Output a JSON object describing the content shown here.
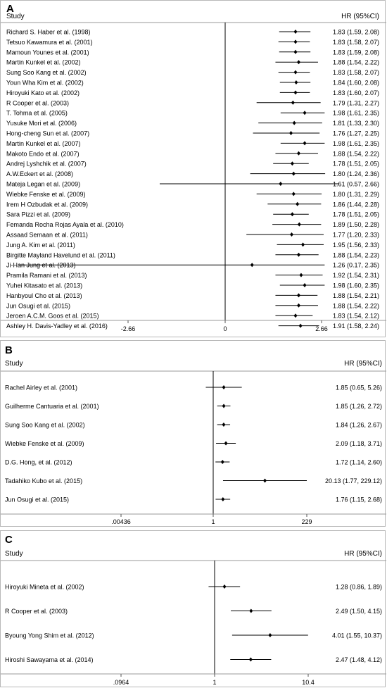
{
  "chart_data": [
    {
      "type": "forest",
      "panel_label": "A",
      "study_header": "Study",
      "effect_header": "HR (95%CI)",
      "xscale": "log",
      "x_ticks": [
        "-2.66",
        "0",
        "2.66"
      ],
      "null_value": 1,
      "studies": [
        {
          "label": "Richard S. Haber et al. (1998)",
          "hr": 1.83,
          "lo": 1.59,
          "hi": 2.08,
          "ci_text": "1.83 (1.59, 2.08)"
        },
        {
          "label": "Tetsuo Kawamura et al. (2001)",
          "hr": 1.83,
          "lo": 1.58,
          "hi": 2.07,
          "ci_text": "1.83 (1.58, 2.07)"
        },
        {
          "label": "Mamoun Younes et al. (2001)",
          "hr": 1.83,
          "lo": 1.59,
          "hi": 2.08,
          "ci_text": "1.83 (1.59, 2.08)"
        },
        {
          "label": "Martin Kunkel et al. (2002)",
          "hr": 1.88,
          "lo": 1.54,
          "hi": 2.22,
          "ci_text": "1.88 (1.54, 2.22)"
        },
        {
          "label": "Sung Soo Kang et al. (2002)",
          "hr": 1.83,
          "lo": 1.58,
          "hi": 2.07,
          "ci_text": "1.83 (1.58, 2.07)"
        },
        {
          "label": "Youn Wha Kim et al. (2002)",
          "hr": 1.84,
          "lo": 1.6,
          "hi": 2.08,
          "ci_text": "1.84 (1.60, 2.08)"
        },
        {
          "label": "Hiroyuki Kato et al. (2002)",
          "hr": 1.83,
          "lo": 1.6,
          "hi": 2.07,
          "ci_text": "1.83 (1.60, 2.07)"
        },
        {
          "label": "R Cooper et al. (2003)",
          "hr": 1.79,
          "lo": 1.31,
          "hi": 2.27,
          "ci_text": "1.79 (1.31, 2.27)"
        },
        {
          "label": "T. Tohma et al. (2005)",
          "hr": 1.98,
          "lo": 1.61,
          "hi": 2.35,
          "ci_text": "1.98 (1.61, 2.35)"
        },
        {
          "label": "Yusuke Mori et al. (2006)",
          "hr": 1.81,
          "lo": 1.33,
          "hi": 2.3,
          "ci_text": "1.81 (1.33, 2.30)"
        },
        {
          "label": "Hong-cheng Sun et al. (2007)",
          "hr": 1.76,
          "lo": 1.27,
          "hi": 2.25,
          "ci_text": "1.76 (1.27, 2.25)"
        },
        {
          "label": "Martin Kunkel et al. (2007)",
          "hr": 1.98,
          "lo": 1.61,
          "hi": 2.35,
          "ci_text": "1.98 (1.61, 2.35)"
        },
        {
          "label": "Makoto Endo et al. (2007)",
          "hr": 1.88,
          "lo": 1.54,
          "hi": 2.22,
          "ci_text": "1.88 (1.54, 2.22)"
        },
        {
          "label": "Andrej Lyshchik et al. (2007)",
          "hr": 1.78,
          "lo": 1.51,
          "hi": 2.05,
          "ci_text": "1.78 (1.51, 2.05)"
        },
        {
          "label": "A.W.Eckert et al. (2008)",
          "hr": 1.8,
          "lo": 1.24,
          "hi": 2.36,
          "ci_text": "1.80 (1.24, 2.36)"
        },
        {
          "label": "Mateja Legan et al. (2009)",
          "hr": 1.61,
          "lo": 0.57,
          "hi": 2.66,
          "ci_text": "1.61 (0.57, 2.66)"
        },
        {
          "label": "Wiebke Fenske et al. (2009)",
          "hr": 1.8,
          "lo": 1.31,
          "hi": 2.29,
          "ci_text": "1.80 (1.31, 2.29)"
        },
        {
          "label": "Irem H Ozbudak et al. (2009)",
          "hr": 1.86,
          "lo": 1.44,
          "hi": 2.28,
          "ci_text": "1.86 (1.44, 2.28)"
        },
        {
          "label": "Sara Pizzi et al. (2009)",
          "hr": 1.78,
          "lo": 1.51,
          "hi": 2.05,
          "ci_text": "1.78 (1.51, 2.05)"
        },
        {
          "label": "Femanda Rocha Rojas Ayala et al. (2010)",
          "hr": 1.89,
          "lo": 1.5,
          "hi": 2.28,
          "ci_text": "1.89 (1.50, 2.28)"
        },
        {
          "label": "Assaad Semaan et al. (2011)",
          "hr": 1.77,
          "lo": 1.2,
          "hi": 2.33,
          "ci_text": "1.77 (1.20, 2.33)"
        },
        {
          "label": "Jung A. Kim et al. (2011)",
          "hr": 1.95,
          "lo": 1.56,
          "hi": 2.33,
          "ci_text": "1.95 (1.56, 2.33)"
        },
        {
          "label": "Birgitte Mayland Havelund et al. (2011)",
          "hr": 1.88,
          "lo": 1.54,
          "hi": 2.23,
          "ci_text": "1.88 (1.54, 2.23)"
        },
        {
          "label": "Ji-Han Jung et al. (2013)",
          "hr": 1.26,
          "lo": 0.17,
          "hi": 2.35,
          "ci_text": "1.26 (0.17, 2.35)"
        },
        {
          "label": "Pramila Ramani et al. (2013)",
          "hr": 1.92,
          "lo": 1.54,
          "hi": 2.31,
          "ci_text": "1.92 (1.54, 2.31)"
        },
        {
          "label": "Yuhei Kitasato et al. (2013)",
          "hr": 1.98,
          "lo": 1.6,
          "hi": 2.35,
          "ci_text": "1.98 (1.60, 2.35)"
        },
        {
          "label": "Hanbyoul Cho et al. (2013)",
          "hr": 1.88,
          "lo": 1.54,
          "hi": 2.21,
          "ci_text": "1.88 (1.54, 2.21)"
        },
        {
          "label": "Jun Osugi et al. (2015)",
          "hr": 1.88,
          "lo": 1.54,
          "hi": 2.22,
          "ci_text": "1.88 (1.54, 2.22)"
        },
        {
          "label": "Jeroen A.C.M. Goos et al. (2015)",
          "hr": 1.83,
          "lo": 1.54,
          "hi": 2.12,
          "ci_text": "1.83 (1.54, 2.12)"
        },
        {
          "label": "Ashley H. Davis-Yadley et al. (2016)",
          "hr": 1.91,
          "lo": 1.58,
          "hi": 2.24,
          "ci_text": "1.91 (1.58, 2.24)"
        }
      ]
    },
    {
      "type": "forest",
      "panel_label": "B",
      "study_header": "Study",
      "effect_header": "HR (95%CI)",
      "xscale": "log",
      "x_ticks": [
        ".00436",
        "1",
        "229"
      ],
      "null_value": 1,
      "studies": [
        {
          "label": "Rachel Airley et al. (2001)",
          "hr": 1.85,
          "lo": 0.65,
          "hi": 5.26,
          "ci_text": "1.85 (0.65, 5.26)"
        },
        {
          "label": "Guilherme Cantuaria et al. (2001)",
          "hr": 1.85,
          "lo": 1.26,
          "hi": 2.72,
          "ci_text": "1.85 (1.26, 2.72)"
        },
        {
          "label": "Sung Soo Kang et al. (2002)",
          "hr": 1.84,
          "lo": 1.26,
          "hi": 2.67,
          "ci_text": "1.84 (1.26, 2.67)"
        },
        {
          "label": "Wiebke Fenske et al. (2009)",
          "hr": 2.09,
          "lo": 1.18,
          "hi": 3.71,
          "ci_text": "2.09 (1.18, 3.71)"
        },
        {
          "label": "D.G. Hong, et al. (2012)",
          "hr": 1.72,
          "lo": 1.14,
          "hi": 2.6,
          "ci_text": "1.72 (1.14, 2.60)"
        },
        {
          "label": "Tadahiko Kubo et al. (2015)",
          "hr": 20.13,
          "lo": 1.77,
          "hi": 229.12,
          "ci_text": "20.13 (1.77, 229.12)"
        },
        {
          "label": "Jun Osugi et al. (2015)",
          "hr": 1.76,
          "lo": 1.15,
          "hi": 2.68,
          "ci_text": "1.76 (1.15, 2.68)"
        }
      ]
    },
    {
      "type": "forest",
      "panel_label": "C",
      "study_header": "Study",
      "effect_header": "HR (95%CI)",
      "xscale": "log",
      "x_ticks": [
        ".0964",
        "1",
        "10.4"
      ],
      "null_value": 1,
      "studies": [
        {
          "label": "Hiroyuki Mineta et al. (2002)",
          "hr": 1.28,
          "lo": 0.86,
          "hi": 1.89,
          "ci_text": "1.28 (0.86, 1.89)"
        },
        {
          "label": "R Cooper et al. (2003)",
          "hr": 2.49,
          "lo": 1.5,
          "hi": 4.15,
          "ci_text": "2.49 (1.50, 4.15)"
        },
        {
          "label": "Byoung Yong Shim et al. (2012)",
          "hr": 4.01,
          "lo": 1.55,
          "hi": 10.37,
          "ci_text": "4.01 (1.55, 10.37)"
        },
        {
          "label": "Hiroshi Sawayama et al. (2014)",
          "hr": 2.47,
          "lo": 1.48,
          "hi": 4.12,
          "ci_text": "2.47 (1.48, 4.12)"
        }
      ]
    }
  ]
}
